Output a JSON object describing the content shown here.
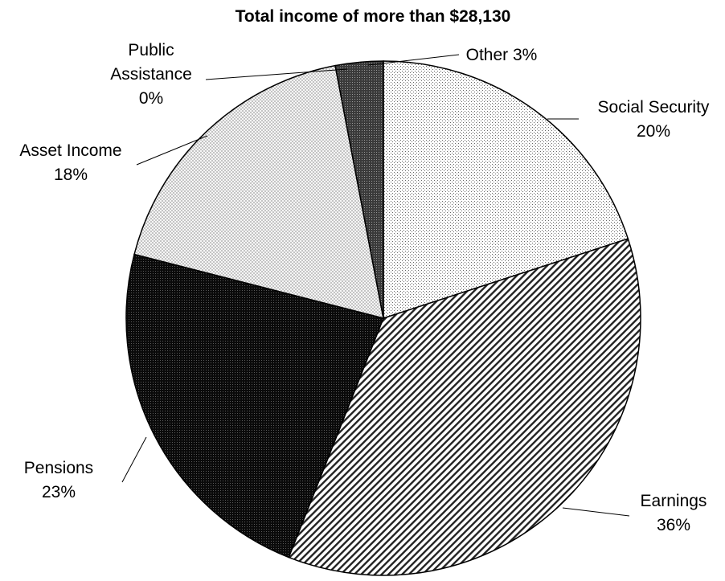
{
  "chart_data": {
    "type": "pie",
    "title": "Total income of more than $28,130",
    "slices": [
      {
        "name": "Social Security",
        "value": 20,
        "value_label": "20%",
        "label_lines": [
          "Social Security",
          "20%"
        ],
        "pattern": "dots-light"
      },
      {
        "name": "Earnings",
        "value": 36,
        "value_label": "36%",
        "label_lines": [
          "Earnings",
          "36%"
        ],
        "pattern": "diagonal-hatch"
      },
      {
        "name": "Pensions",
        "value": 23,
        "value_label": "23%",
        "label_lines": [
          "Pensions",
          "23%"
        ],
        "pattern": "dark-dotted"
      },
      {
        "name": "Asset Income",
        "value": 18,
        "value_label": "18%",
        "label_lines": [
          "Asset Income",
          "18%"
        ],
        "pattern": "cross-hatch-light"
      },
      {
        "name": "Public Assistance",
        "value": 0,
        "value_label": "0%",
        "label_lines": [
          "Public",
          "Assistance",
          "0%"
        ],
        "pattern": "none"
      },
      {
        "name": "Other",
        "value": 3,
        "value_label": "3%",
        "label_lines": [
          "Other 3%"
        ],
        "pattern": "dense-dark"
      }
    ],
    "start": "12 o'clock",
    "direction": "clockwise",
    "legend": "none",
    "colors": {
      "outline": "#000000",
      "background": "#ffffff"
    }
  }
}
